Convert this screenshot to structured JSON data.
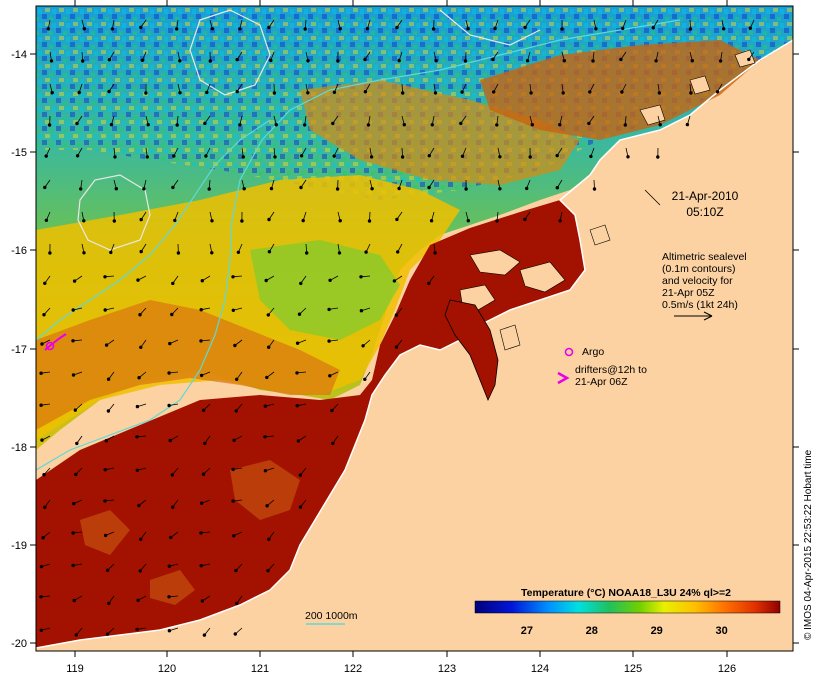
{
  "map": {
    "lon_ticks": [
      "119",
      "120",
      "121",
      "122",
      "123",
      "124",
      "125",
      "126"
    ],
    "lat_ticks": [
      "-14",
      "-15",
      "-16",
      "-17",
      "-18",
      "-19",
      "-20"
    ],
    "lon_range": [
      118.65,
      126.7
    ],
    "lat_range": [
      -13.7,
      -20.05
    ]
  },
  "annotations": {
    "date": "21-Apr-2010",
    "time": "05:10Z",
    "altimetry_lines": [
      "Altimetric sealevel",
      "(0.1m contours)",
      "and velocity for",
      "21-Apr 05Z",
      "0.5m/s (1kt 24h)"
    ],
    "argo_label": "Argo",
    "drifters_line1": "drifters@12h to",
    "drifters_line2": "21-Apr 06Z",
    "depth_legend": "200  1000m"
  },
  "colorbar": {
    "title": "Temperature (°C) NOAA18_L3U 24% ql>=2",
    "ticks": [
      "27",
      "28",
      "29",
      "30"
    ],
    "tick_values": [
      27,
      28,
      29,
      30
    ],
    "range": [
      26.2,
      30.9
    ]
  },
  "credit": "© IMOS 04-Apr-2015 22:53:22 Hobart time",
  "colors": {
    "land": "#fcd2a2",
    "warm_water": "#a31200",
    "argo_marker": "#e800e8",
    "contour": "#5fd8d8"
  }
}
